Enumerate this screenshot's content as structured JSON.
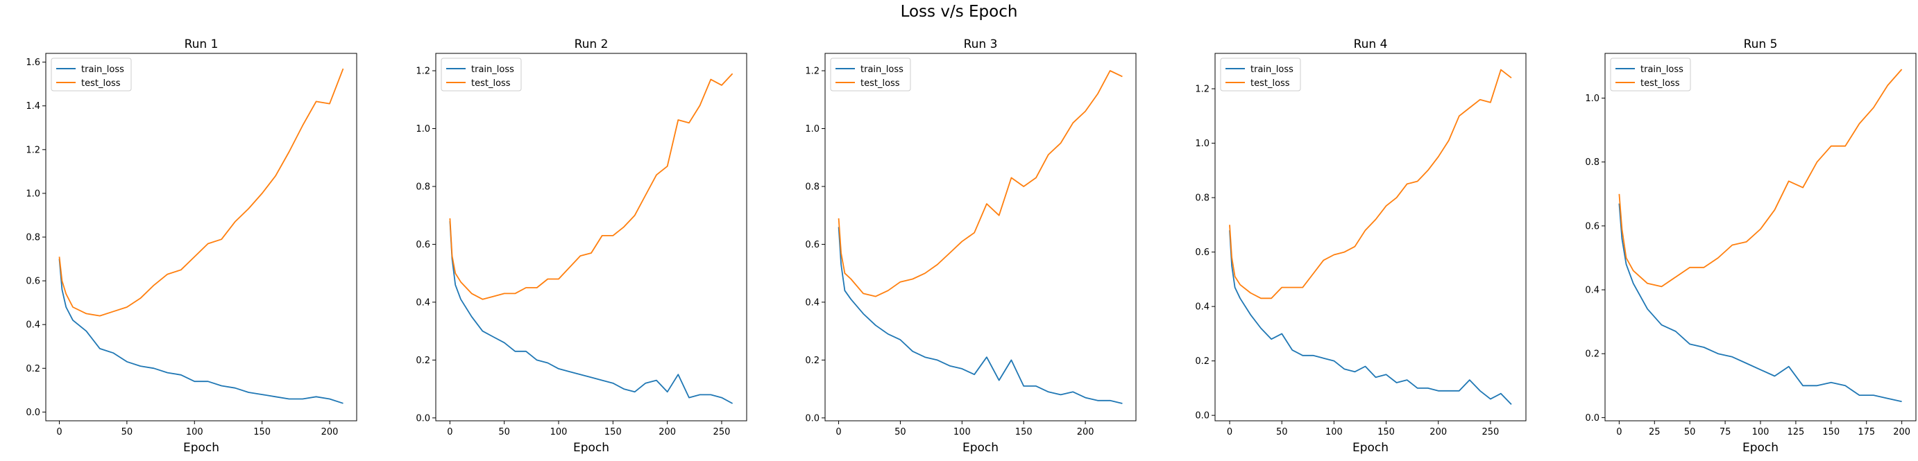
{
  "suptitle": "Loss v/s Epoch",
  "colors": {
    "train": "#1f77b4",
    "test": "#ff7f0e"
  },
  "chart_data": [
    {
      "type": "line",
      "title": "Run 1",
      "xlabel": "Epoch",
      "ylabel": "",
      "xlim": [
        -10,
        220
      ],
      "ylim": [
        -0.04,
        1.64
      ],
      "xticks": [
        0,
        50,
        100,
        150,
        200
      ],
      "yticks": [
        0.0,
        0.2,
        0.4,
        0.6,
        0.8,
        1.0,
        1.2,
        1.4,
        1.6
      ],
      "legend_position": "upper-left",
      "series": [
        {
          "name": "train_loss",
          "x": [
            0,
            2,
            5,
            10,
            20,
            30,
            40,
            50,
            60,
            70,
            80,
            90,
            100,
            110,
            120,
            130,
            140,
            150,
            160,
            170,
            180,
            190,
            200,
            210
          ],
          "values": [
            0.7,
            0.56,
            0.48,
            0.42,
            0.37,
            0.29,
            0.27,
            0.23,
            0.21,
            0.2,
            0.18,
            0.17,
            0.14,
            0.14,
            0.12,
            0.11,
            0.09,
            0.08,
            0.07,
            0.06,
            0.06,
            0.07,
            0.06,
            0.04
          ]
        },
        {
          "name": "test_loss",
          "x": [
            0,
            2,
            5,
            10,
            20,
            30,
            40,
            50,
            60,
            70,
            80,
            90,
            100,
            110,
            120,
            130,
            140,
            150,
            160,
            170,
            180,
            190,
            200,
            210
          ],
          "values": [
            0.71,
            0.6,
            0.54,
            0.48,
            0.45,
            0.44,
            0.46,
            0.48,
            0.52,
            0.58,
            0.63,
            0.65,
            0.71,
            0.77,
            0.79,
            0.87,
            0.93,
            1.0,
            1.08,
            1.19,
            1.31,
            1.42,
            1.41,
            1.57
          ]
        }
      ]
    },
    {
      "type": "line",
      "title": "Run 2",
      "xlabel": "Epoch",
      "ylabel": "",
      "xlim": [
        -13,
        273
      ],
      "ylim": [
        -0.01,
        1.26
      ],
      "xticks": [
        0,
        50,
        100,
        150,
        200,
        250
      ],
      "yticks": [
        0.0,
        0.2,
        0.4,
        0.6,
        0.8,
        1.0,
        1.2
      ],
      "legend_position": "upper-left",
      "series": [
        {
          "name": "train_loss",
          "x": [
            0,
            2,
            5,
            10,
            20,
            30,
            40,
            50,
            60,
            70,
            80,
            90,
            100,
            110,
            120,
            130,
            140,
            150,
            160,
            170,
            180,
            190,
            200,
            210,
            220,
            230,
            240,
            250,
            260
          ],
          "values": [
            0.68,
            0.55,
            0.46,
            0.41,
            0.35,
            0.3,
            0.28,
            0.26,
            0.23,
            0.23,
            0.2,
            0.19,
            0.17,
            0.16,
            0.15,
            0.14,
            0.13,
            0.12,
            0.1,
            0.09,
            0.12,
            0.13,
            0.09,
            0.15,
            0.07,
            0.08,
            0.08,
            0.07,
            0.05
          ]
        },
        {
          "name": "test_loss",
          "x": [
            0,
            2,
            5,
            10,
            20,
            30,
            40,
            50,
            60,
            70,
            80,
            90,
            100,
            110,
            120,
            130,
            140,
            150,
            160,
            170,
            180,
            190,
            200,
            210,
            220,
            230,
            240,
            250,
            260
          ],
          "values": [
            0.69,
            0.56,
            0.5,
            0.47,
            0.43,
            0.41,
            0.42,
            0.43,
            0.43,
            0.45,
            0.45,
            0.48,
            0.48,
            0.52,
            0.56,
            0.57,
            0.63,
            0.63,
            0.66,
            0.7,
            0.77,
            0.84,
            0.87,
            1.03,
            1.02,
            1.08,
            1.17,
            1.15,
            1.19
          ]
        }
      ]
    },
    {
      "type": "line",
      "title": "Run 3",
      "xlabel": "Epoch",
      "ylabel": "",
      "xlim": [
        -11,
        241
      ],
      "ylim": [
        -0.01,
        1.26
      ],
      "xticks": [
        0,
        50,
        100,
        150,
        200
      ],
      "yticks": [
        0.0,
        0.2,
        0.4,
        0.6,
        0.8,
        1.0,
        1.2
      ],
      "legend_position": "upper-left",
      "series": [
        {
          "name": "train_loss",
          "x": [
            0,
            2,
            5,
            10,
            20,
            30,
            40,
            50,
            60,
            70,
            80,
            90,
            100,
            110,
            120,
            130,
            140,
            150,
            160,
            170,
            180,
            190,
            200,
            210,
            220,
            230
          ],
          "values": [
            0.66,
            0.53,
            0.44,
            0.41,
            0.36,
            0.32,
            0.29,
            0.27,
            0.23,
            0.21,
            0.2,
            0.18,
            0.17,
            0.15,
            0.21,
            0.13,
            0.2,
            0.11,
            0.11,
            0.09,
            0.08,
            0.09,
            0.07,
            0.06,
            0.06,
            0.05
          ]
        },
        {
          "name": "test_loss",
          "x": [
            0,
            2,
            5,
            10,
            20,
            30,
            40,
            50,
            60,
            70,
            80,
            90,
            100,
            110,
            120,
            130,
            140,
            150,
            160,
            170,
            180,
            190,
            200,
            210,
            220,
            230
          ],
          "values": [
            0.69,
            0.57,
            0.5,
            0.48,
            0.43,
            0.42,
            0.44,
            0.47,
            0.48,
            0.5,
            0.53,
            0.57,
            0.61,
            0.64,
            0.74,
            0.7,
            0.83,
            0.8,
            0.83,
            0.91,
            0.95,
            1.02,
            1.06,
            1.12,
            1.2,
            1.18
          ]
        }
      ]
    },
    {
      "type": "line",
      "title": "Run 4",
      "xlabel": "Epoch",
      "ylabel": "",
      "xlim": [
        -14,
        284
      ],
      "ylim": [
        -0.02,
        1.33
      ],
      "xticks": [
        0,
        50,
        100,
        150,
        200,
        250
      ],
      "yticks": [
        0.0,
        0.2,
        0.4,
        0.6,
        0.8,
        1.0,
        1.2
      ],
      "legend_position": "upper-left",
      "series": [
        {
          "name": "train_loss",
          "x": [
            0,
            2,
            5,
            10,
            20,
            30,
            40,
            50,
            60,
            70,
            80,
            90,
            100,
            110,
            120,
            130,
            140,
            150,
            160,
            170,
            180,
            190,
            200,
            210,
            220,
            230,
            240,
            250,
            260,
            270
          ],
          "values": [
            0.68,
            0.55,
            0.47,
            0.43,
            0.37,
            0.32,
            0.28,
            0.3,
            0.24,
            0.22,
            0.22,
            0.21,
            0.2,
            0.17,
            0.16,
            0.18,
            0.14,
            0.15,
            0.12,
            0.13,
            0.1,
            0.1,
            0.09,
            0.09,
            0.09,
            0.13,
            0.09,
            0.06,
            0.08,
            0.04
          ]
        },
        {
          "name": "test_loss",
          "x": [
            0,
            2,
            5,
            10,
            20,
            30,
            40,
            50,
            60,
            70,
            80,
            90,
            100,
            110,
            120,
            130,
            140,
            150,
            160,
            170,
            180,
            190,
            200,
            210,
            220,
            230,
            240,
            250,
            260,
            270
          ],
          "values": [
            0.7,
            0.58,
            0.51,
            0.48,
            0.45,
            0.43,
            0.43,
            0.47,
            0.47,
            0.47,
            0.52,
            0.57,
            0.59,
            0.6,
            0.62,
            0.68,
            0.72,
            0.77,
            0.8,
            0.85,
            0.86,
            0.9,
            0.95,
            1.01,
            1.1,
            1.13,
            1.16,
            1.15,
            1.27,
            1.24
          ]
        }
      ]
    },
    {
      "type": "line",
      "title": "Run 5",
      "xlabel": "Epoch",
      "ylabel": "",
      "xlim": [
        -10,
        210
      ],
      "ylim": [
        -0.01,
        1.14
      ],
      "xticks": [
        0,
        25,
        50,
        75,
        100,
        125,
        150,
        175,
        200
      ],
      "yticks": [
        0.0,
        0.2,
        0.4,
        0.6,
        0.8,
        1.0
      ],
      "legend_position": "upper-left",
      "series": [
        {
          "name": "train_loss",
          "x": [
            0,
            2,
            5,
            10,
            20,
            30,
            40,
            50,
            60,
            70,
            80,
            90,
            100,
            110,
            120,
            130,
            140,
            150,
            160,
            170,
            180,
            190,
            200
          ],
          "values": [
            0.67,
            0.56,
            0.48,
            0.42,
            0.34,
            0.29,
            0.27,
            0.23,
            0.22,
            0.2,
            0.19,
            0.17,
            0.15,
            0.13,
            0.16,
            0.1,
            0.1,
            0.11,
            0.1,
            0.07,
            0.07,
            0.06,
            0.05
          ]
        },
        {
          "name": "test_loss",
          "x": [
            0,
            2,
            5,
            10,
            20,
            30,
            40,
            50,
            60,
            70,
            80,
            90,
            100,
            110,
            120,
            130,
            140,
            150,
            160,
            170,
            180,
            190,
            200
          ],
          "values": [
            0.7,
            0.59,
            0.5,
            0.46,
            0.42,
            0.41,
            0.44,
            0.47,
            0.47,
            0.5,
            0.54,
            0.55,
            0.59,
            0.65,
            0.74,
            0.72,
            0.8,
            0.85,
            0.85,
            0.92,
            0.97,
            1.04,
            1.09
          ]
        }
      ]
    }
  ]
}
